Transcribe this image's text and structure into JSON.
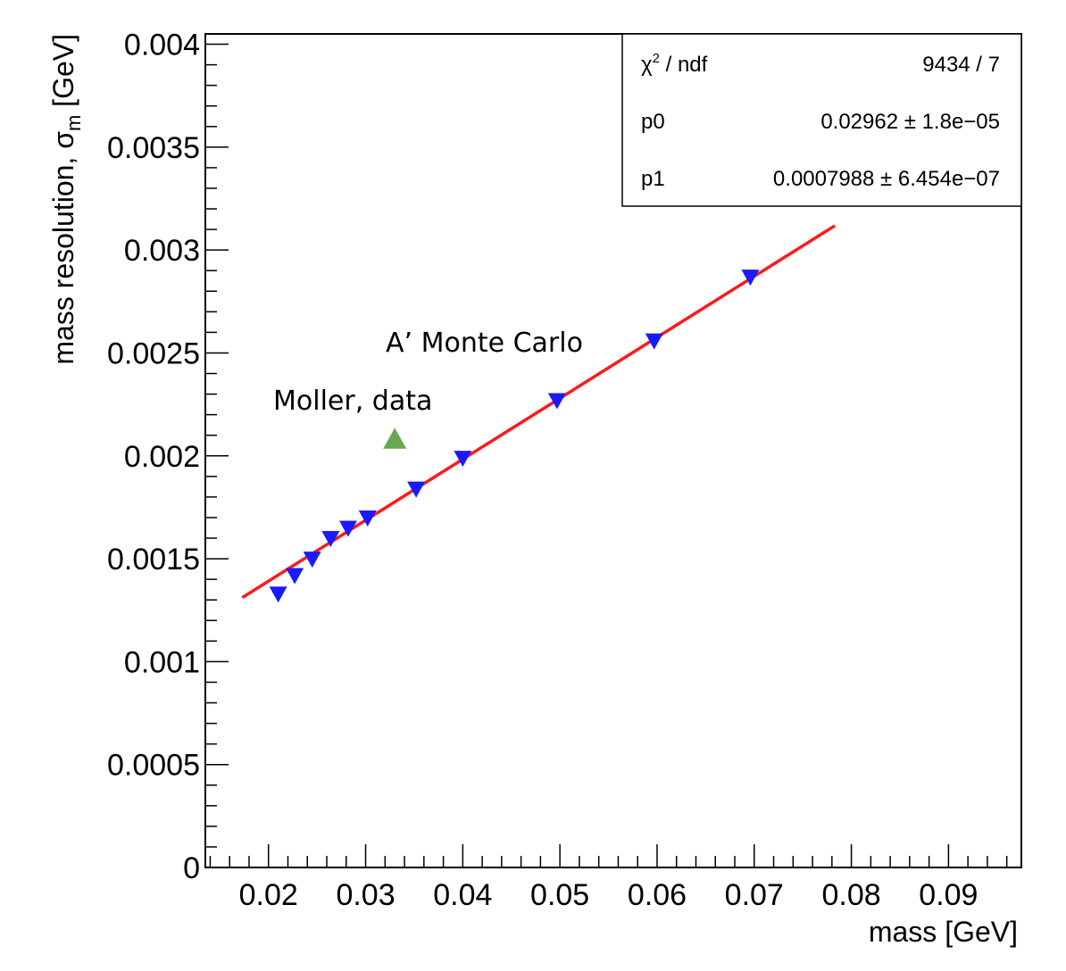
{
  "chart_data": {
    "type": "scatter",
    "xlabel": "mass [GeV]",
    "ylabel_main": "mass resolution, σ",
    "ylabel_sub": "m",
    "ylabel_unit": " [GeV]",
    "xlim": [
      0.0135,
      0.0975
    ],
    "ylim": [
      0,
      0.00405
    ],
    "x_ticks": [
      0.02,
      0.03,
      0.04,
      0.05,
      0.06,
      0.07,
      0.08,
      0.09
    ],
    "x_tick_labels": [
      "0.02",
      "0.03",
      "0.04",
      "0.05",
      "0.06",
      "0.07",
      "0.08",
      "0.09"
    ],
    "y_ticks": [
      0,
      0.0005,
      0.001,
      0.0015,
      0.002,
      0.0025,
      0.003,
      0.0035,
      0.004
    ],
    "y_tick_labels": [
      "0",
      "0.0005",
      "0.001",
      "0.0015",
      "0.002",
      "0.0025",
      "0.003",
      "0.0035",
      "0.004"
    ],
    "grid": false,
    "series": [
      {
        "name": "A’ Monte Carlo",
        "marker": "triangle-down",
        "color": "#1a1aff",
        "x": [
          0.021,
          0.0227,
          0.0245,
          0.0264,
          0.0282,
          0.0302,
          0.0352,
          0.04,
          0.0497,
          0.0597,
          0.0696
        ],
        "y": [
          0.00133,
          0.00142,
          0.0015,
          0.0016,
          0.00165,
          0.0017,
          0.00184,
          0.00199,
          0.00227,
          0.00256,
          0.00287
        ]
      },
      {
        "name": "Moller, data",
        "marker": "triangle-up",
        "color": "#6aa84f",
        "x": [
          0.033
        ],
        "y": [
          0.00208
        ]
      }
    ],
    "fit": {
      "color": "#ff0000",
      "x_start": 0.0173,
      "x_end": 0.0783,
      "intercept": 0.0007988,
      "slope": 0.02962
    },
    "stats_box": {
      "rows": [
        {
          "label": "χ",
          "label_sup": "2",
          "label_rest": " / ndf",
          "value": "9434 / 7"
        },
        {
          "label": "p0",
          "label_sup": "",
          "label_rest": "",
          "value": "0.02962 ± 1.8e−05"
        },
        {
          "label": "p1",
          "label_sup": "",
          "label_rest": "",
          "value": "0.0007988 ± 6.454e−07"
        }
      ]
    },
    "annotations": [
      {
        "text": "A’ Monte Carlo",
        "color": "#1a66ff"
      },
      {
        "text": "Moller, data",
        "color": "#6aa84f"
      }
    ]
  }
}
